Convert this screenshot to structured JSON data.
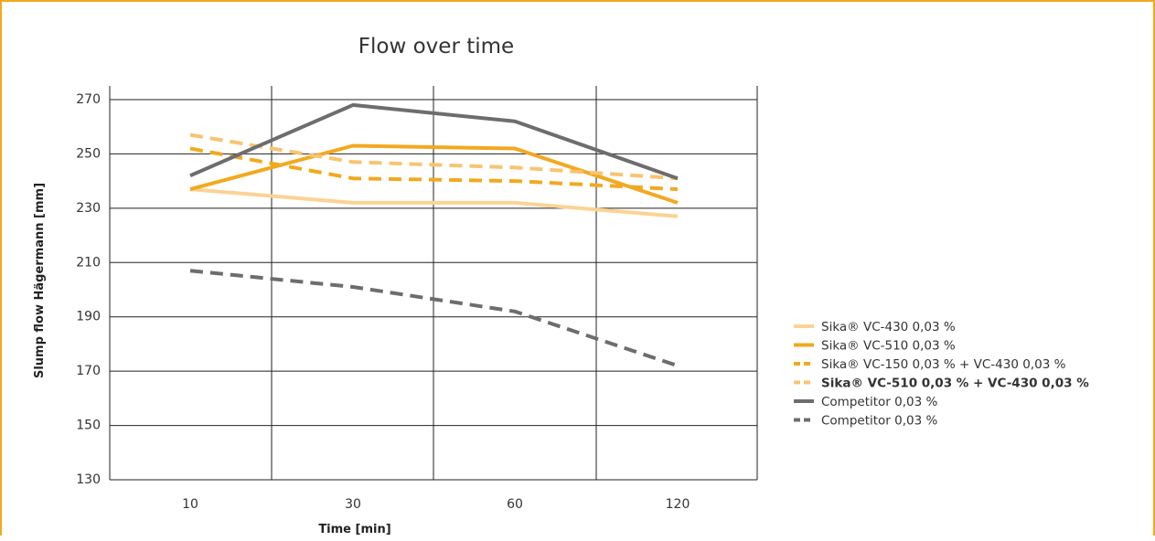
{
  "chart_data": {
    "type": "line",
    "title": "Flow over time",
    "xlabel": "Time [min]",
    "ylabel": "Slump flow Hägermann [mm]",
    "categories": [
      "10",
      "30",
      "60",
      "120"
    ],
    "ylim": [
      130,
      270
    ],
    "yticks": [
      "270",
      "250",
      "230",
      "210",
      "190",
      "170",
      "150",
      "130"
    ],
    "ytick_values": [
      270,
      250,
      230,
      210,
      190,
      170,
      150,
      130
    ],
    "grid": true,
    "legend_position": "right",
    "series": [
      {
        "name": "Sika® VC-430 0,03 %",
        "values": [
          237,
          232,
          232,
          227
        ],
        "color": "#fbd394",
        "dash": "solid",
        "bold": false
      },
      {
        "name": "Sika® VC-510 0,03 %",
        "values": [
          237,
          253,
          252,
          232
        ],
        "color": "#f2a91f",
        "dash": "solid",
        "bold": false
      },
      {
        "name": "Sika® VC-150 0,03 % + VC-430 0,03 %",
        "values": [
          252,
          241,
          240,
          237
        ],
        "color": "#f2a91f",
        "dash": "dashed",
        "bold": false
      },
      {
        "name": "Sika® VC-510 0,03 % + VC-430 0,03 %",
        "values": [
          257,
          247,
          245,
          241
        ],
        "color": "#f8c470",
        "dash": "dashed",
        "bold": true
      },
      {
        "name": "Competitor 0,03 %",
        "values": [
          242,
          268,
          262,
          241
        ],
        "color": "#6d6d6f",
        "dash": "solid",
        "bold": false
      },
      {
        "name": "Competitor 0,03 %",
        "values": [
          207,
          201,
          192,
          172
        ],
        "color": "#6d6d6f",
        "dash": "dashed",
        "bold": false
      }
    ]
  }
}
